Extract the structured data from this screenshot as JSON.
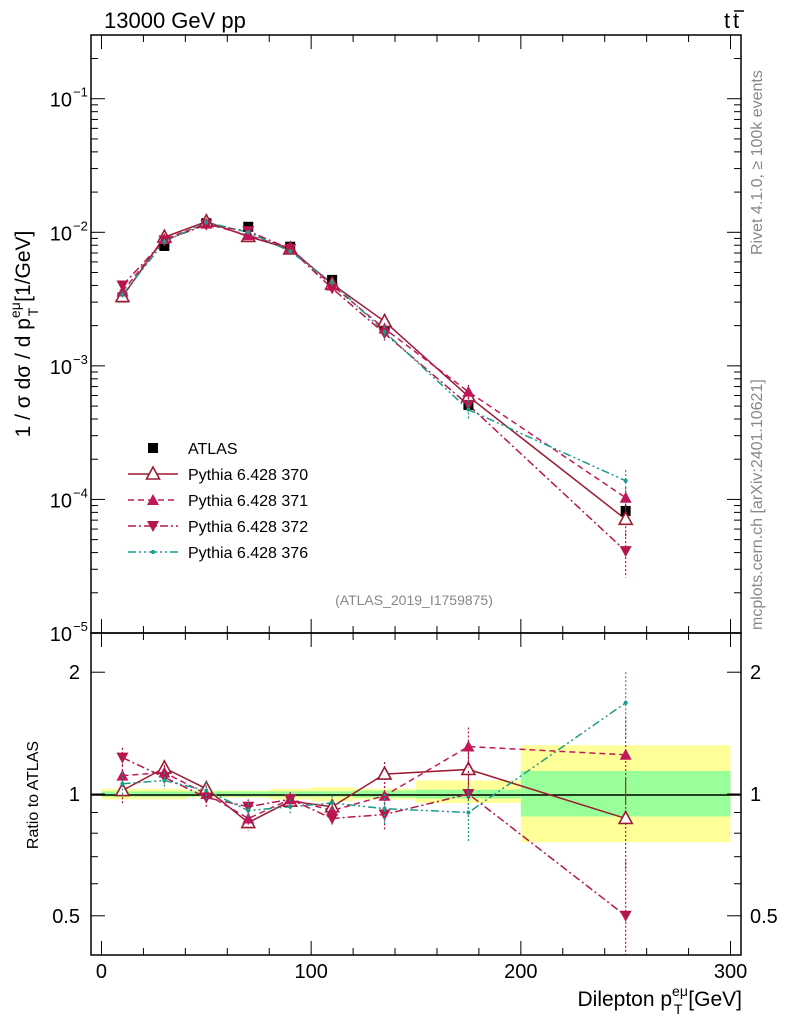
{
  "header": {
    "process": "13000 GeV pp",
    "channel_base": "t",
    "channel_bar": "t",
    "side_top": "Rivet 4.1.0, ≥ 100k events",
    "side_bottom": "mcplots.cern.ch [arXiv:2401.10621]",
    "watermark": "(ATLAS_2019_I1759875)"
  },
  "chart_data": [
    {
      "type": "line",
      "panel": "main",
      "yscale": "log",
      "ylim": [
        1e-05,
        0.3
      ],
      "xlim": [
        -5,
        305
      ],
      "ylabel_main": "1 / σ  dσ / d p",
      "ylabel_sub": "T",
      "ylabel_sup": "eμ",
      "ylabel_unit": " [1/GeV]",
      "y_ticks": [
        {
          "value": 0.1,
          "label": "10",
          "exp": "−1"
        },
        {
          "value": 0.01,
          "label": "10",
          "exp": "−2"
        },
        {
          "value": 0.001,
          "label": "10",
          "exp": "−3"
        },
        {
          "value": 0.0001,
          "label": "10",
          "exp": "−4"
        },
        {
          "value": 1e-05,
          "label": "10",
          "exp": "−5"
        }
      ],
      "x": [
        10,
        30,
        50,
        70,
        90,
        110,
        135,
        175,
        250
      ],
      "bin_edges": [
        0,
        20,
        40,
        60,
        80,
        100,
        120,
        150,
        200,
        300
      ],
      "series": [
        {
          "name": "ATLAS",
          "color": "#000000",
          "marker": "square",
          "values": [
            0.00325,
            0.0079,
            0.0117,
            0.011,
            0.0078,
            0.0044,
            0.00195,
            0.00051,
            8.2e-05
          ],
          "err_up": [
            0.0001,
            0.0002,
            0.0003,
            0.0003,
            0.0002,
            0.00012,
            5e-05,
            2e-05,
            9e-06
          ],
          "err_dn": [
            0.0001,
            0.0002,
            0.0003,
            0.0003,
            0.0002,
            0.00012,
            5e-05,
            2e-05,
            9e-06
          ]
        },
        {
          "name": "Pythia 6.428 370",
          "color": "#9b1b30",
          "marker": "triangle-up-open",
          "dash": "solid",
          "values": [
            0.0033,
            0.0092,
            0.012,
            0.0093,
            0.0075,
            0.0041,
            0.00215,
            0.00059,
            7.1e-05
          ],
          "err_up": [
            0.0002,
            0.0004,
            0.0005,
            0.0004,
            0.0003,
            0.0002,
            0.0002,
            7e-05,
            1.8e-05
          ],
          "err_dn": [
            0.0002,
            0.0004,
            0.0005,
            0.0004,
            0.0003,
            0.0002,
            0.0002,
            7e-05,
            1.8e-05
          ]
        },
        {
          "name": "Pythia 6.428 371",
          "color": "#c2185b",
          "marker": "triangle-up",
          "dash": "dash",
          "values": [
            0.0036,
            0.0089,
            0.0116,
            0.0095,
            0.0076,
            0.004,
            0.0019,
            0.00064,
            0.000103
          ],
          "err_up": [
            0.0002,
            0.0004,
            0.0005,
            0.0004,
            0.0003,
            0.0002,
            0.0002,
            8e-05,
            2e-05
          ],
          "err_dn": [
            0.0002,
            0.0004,
            0.0005,
            0.0004,
            0.0003,
            0.0002,
            0.0002,
            8e-05,
            2e-05
          ]
        },
        {
          "name": "Pythia 6.428 372",
          "color": "#b5174c",
          "marker": "triangle-down",
          "dash": "dashdot",
          "values": [
            0.004,
            0.0087,
            0.0114,
            0.0102,
            0.0075,
            0.0038,
            0.00175,
            0.00051,
            4.1e-05
          ],
          "err_up": [
            0.0002,
            0.0004,
            0.0005,
            0.0004,
            0.0003,
            0.0002,
            0.0002,
            7e-05,
            1.5e-05
          ],
          "err_dn": [
            0.0002,
            0.0004,
            0.0005,
            0.0004,
            0.0003,
            0.0002,
            0.0002,
            7e-05,
            1.5e-05
          ]
        },
        {
          "name": "Pythia 6.428 376",
          "color": "#1a9c8a",
          "marker": "dot",
          "dash": "dashdotdot",
          "values": [
            0.0034,
            0.0085,
            0.0119,
            0.01,
            0.0072,
            0.0042,
            0.0018,
            0.00047,
            0.000138
          ],
          "err_up": [
            0.0002,
            0.0004,
            0.0005,
            0.0004,
            0.0003,
            0.0002,
            0.0002,
            8e-05,
            2.8e-05
          ],
          "err_dn": [
            0.0002,
            0.0004,
            0.0005,
            0.0004,
            0.0003,
            0.0002,
            0.0002,
            8e-05,
            2.8e-05
          ]
        }
      ]
    },
    {
      "type": "line",
      "panel": "ratio",
      "yscale": "log",
      "ylim": [
        0.4,
        2.5
      ],
      "xlim": [
        -5,
        305
      ],
      "ylabel": "Ratio to ATLAS",
      "y_ticks": [
        {
          "value": 2,
          "label": "2"
        },
        {
          "value": 1,
          "label": "1"
        },
        {
          "value": 0.5,
          "label": "0.5"
        }
      ],
      "x_ticks": [
        {
          "value": 0,
          "label": "0"
        },
        {
          "value": 100,
          "label": "100"
        },
        {
          "value": 200,
          "label": "200"
        },
        {
          "value": 300,
          "label": "300"
        }
      ],
      "xlabel_main": "Dilepton p",
      "xlabel_sub": "T",
      "xlabel_sup": "eμ",
      "xlabel_unit": " [GeV]",
      "bands": {
        "inner_color": "#99ff99",
        "outer_color": "#ffff99",
        "inner": [
          [
            0.985,
            1.015
          ],
          [
            0.985,
            1.015
          ],
          [
            0.985,
            1.015
          ],
          [
            0.985,
            1.015
          ],
          [
            0.985,
            1.015
          ],
          [
            0.985,
            1.015
          ],
          [
            0.98,
            1.02
          ],
          [
            0.975,
            1.025
          ],
          [
            0.88,
            1.14
          ]
        ],
        "outer": [
          [
            0.97,
            1.03
          ],
          [
            0.97,
            1.03
          ],
          [
            0.98,
            1.02
          ],
          [
            0.98,
            1.02
          ],
          [
            0.97,
            1.03
          ],
          [
            0.96,
            1.04
          ],
          [
            0.97,
            1.03
          ],
          [
            0.95,
            1.08
          ],
          [
            0.76,
            1.32
          ]
        ]
      },
      "series": [
        {
          "name": "Pythia 6.428 370",
          "values": [
            1.02,
            1.16,
            1.03,
            0.85,
            0.96,
            0.93,
            1.12,
            1.15,
            0.87
          ],
          "err": [
            0.08,
            0.05,
            0.05,
            0.04,
            0.04,
            0.04,
            0.08,
            0.14,
            0.22
          ]
        },
        {
          "name": "Pythia 6.428 371",
          "values": [
            1.11,
            1.13,
            1.0,
            0.87,
            0.97,
            0.91,
            0.99,
            1.31,
            1.25
          ],
          "err": [
            0.07,
            0.05,
            0.05,
            0.04,
            0.04,
            0.04,
            0.08,
            0.15,
            0.3
          ]
        },
        {
          "name": "Pythia 6.428 372",
          "values": [
            1.23,
            1.1,
            0.98,
            0.93,
            0.97,
            0.87,
            0.89,
            1.0,
            0.5
          ],
          "err": [
            0.07,
            0.05,
            0.05,
            0.04,
            0.04,
            0.04,
            0.08,
            0.14,
            0.18
          ]
        },
        {
          "name": "Pythia 6.428 376",
          "values": [
            1.06,
            1.08,
            1.02,
            0.91,
            0.93,
            0.95,
            0.92,
            0.9,
            1.68
          ],
          "err": [
            0.07,
            0.05,
            0.05,
            0.04,
            0.04,
            0.04,
            0.08,
            0.14,
            0.32
          ]
        }
      ]
    }
  ]
}
